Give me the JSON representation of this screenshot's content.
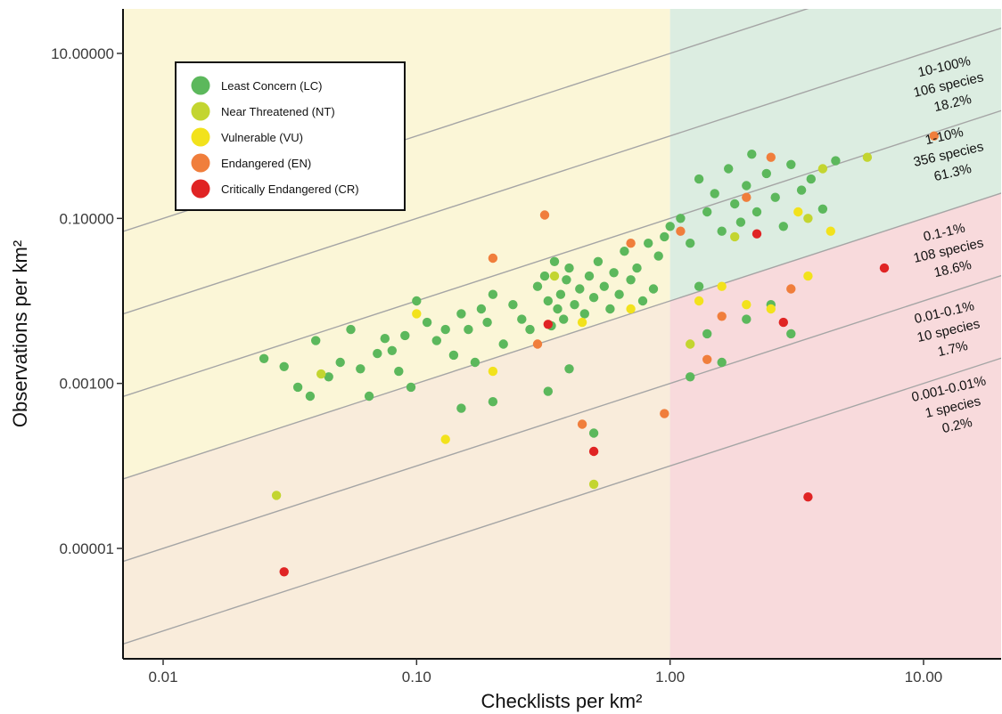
{
  "chart_data": {
    "type": "scatter",
    "xlabel": "Checklists per km²",
    "ylabel": "Observations per km²",
    "x_scale": "log",
    "y_scale": "log",
    "xlim": [
      0.007,
      20
    ],
    "ylim": [
      8e-07,
      20
    ],
    "x_ticks": [
      {
        "value": 0.01,
        "label": "0.01"
      },
      {
        "value": 0.1,
        "label": "0.10"
      },
      {
        "value": 1,
        "label": "1.00"
      },
      {
        "value": 10,
        "label": "10.00"
      }
    ],
    "y_ticks": [
      {
        "value": 10,
        "label": "10.00000"
      },
      {
        "value": 0.1,
        "label": "0.10000"
      },
      {
        "value": 0.001,
        "label": "0.00100"
      },
      {
        "value": 1e-05,
        "label": "0.00001"
      }
    ],
    "grid": false,
    "legend_position": "top-left",
    "regions": [
      {
        "xmin": 0.007,
        "xmax": 1,
        "ymin": "diagonal-1%",
        "ymax": 20,
        "color": "#fbf6d7"
      },
      {
        "xmin": 0.007,
        "xmax": 1,
        "ymin": 8e-07,
        "ymax": "diagonal-1%",
        "color": "#f9ecdb"
      },
      {
        "xmin": 1,
        "xmax": 20,
        "ymin": "diagonal-1%",
        "ymax": 20,
        "color": "#dcede1"
      },
      {
        "xmin": 1,
        "xmax": 20,
        "ymin": 8e-07,
        "ymax": "diagonal-1%",
        "color": "#f8dadc"
      }
    ],
    "reference_lines_observations_per_checklist": [
      10,
      1,
      0.1,
      0.01,
      0.001,
      0.0001
    ],
    "band_labels": [
      {
        "lines": [
          "10-100%",
          "106 species",
          "18.2%"
        ]
      },
      {
        "lines": [
          "1-10%",
          "356 species",
          "61.3%"
        ]
      },
      {
        "lines": [
          "0.1-1%",
          "108 species",
          "18.6%"
        ]
      },
      {
        "lines": [
          "0.01-0.1%",
          "10 species",
          "1.7%"
        ]
      },
      {
        "lines": [
          "0.001-0.01%",
          "1 species",
          "0.2%"
        ]
      }
    ],
    "series": [
      {
        "name": "Least Concern (LC)",
        "color": "#5cb85c",
        "points": [
          [
            0.025,
            0.002
          ],
          [
            0.03,
            0.0016
          ],
          [
            0.034,
            0.0009
          ],
          [
            0.038,
            0.0007
          ],
          [
            0.04,
            0.0033
          ],
          [
            0.045,
            0.0012
          ],
          [
            0.05,
            0.0018
          ],
          [
            0.055,
            0.0045
          ],
          [
            0.06,
            0.0015
          ],
          [
            0.065,
            0.0007
          ],
          [
            0.07,
            0.0023
          ],
          [
            0.075,
            0.0035
          ],
          [
            0.08,
            0.0025
          ],
          [
            0.085,
            0.0014
          ],
          [
            0.09,
            0.0038
          ],
          [
            0.095,
            0.0009
          ],
          [
            0.1,
            0.01
          ],
          [
            0.11,
            0.0055
          ],
          [
            0.12,
            0.0033
          ],
          [
            0.13,
            0.0045
          ],
          [
            0.14,
            0.0022
          ],
          [
            0.15,
            0.007
          ],
          [
            0.16,
            0.0045
          ],
          [
            0.17,
            0.0018
          ],
          [
            0.18,
            0.008
          ],
          [
            0.19,
            0.0055
          ],
          [
            0.2,
            0.012
          ],
          [
            0.22,
            0.003
          ],
          [
            0.24,
            0.009
          ],
          [
            0.26,
            0.006
          ],
          [
            0.28,
            0.0045
          ],
          [
            0.3,
            0.015
          ],
          [
            0.32,
            0.02
          ],
          [
            0.33,
            0.01
          ],
          [
            0.34,
            0.005
          ],
          [
            0.35,
            0.03
          ],
          [
            0.36,
            0.008
          ],
          [
            0.37,
            0.012
          ],
          [
            0.38,
            0.006
          ],
          [
            0.39,
            0.018
          ],
          [
            0.4,
            0.025
          ],
          [
            0.42,
            0.009
          ],
          [
            0.44,
            0.014
          ],
          [
            0.46,
            0.007
          ],
          [
            0.48,
            0.02
          ],
          [
            0.5,
            0.011
          ],
          [
            0.52,
            0.03
          ],
          [
            0.55,
            0.015
          ],
          [
            0.58,
            0.008
          ],
          [
            0.6,
            0.022
          ],
          [
            0.63,
            0.012
          ],
          [
            0.66,
            0.04
          ],
          [
            0.7,
            0.018
          ],
          [
            0.74,
            0.025
          ],
          [
            0.78,
            0.01
          ],
          [
            0.82,
            0.05
          ],
          [
            0.86,
            0.014
          ],
          [
            0.9,
            0.035
          ],
          [
            0.95,
            0.06
          ],
          [
            1.0,
            0.08
          ],
          [
            1.1,
            0.1
          ],
          [
            1.2,
            0.05
          ],
          [
            1.3,
            0.3
          ],
          [
            1.4,
            0.12
          ],
          [
            1.5,
            0.2
          ],
          [
            1.6,
            0.07
          ],
          [
            1.7,
            0.4
          ],
          [
            1.8,
            0.15
          ],
          [
            1.9,
            0.09
          ],
          [
            2.0,
            0.25
          ],
          [
            2.1,
            0.6
          ],
          [
            2.2,
            0.12
          ],
          [
            2.4,
            0.35
          ],
          [
            2.6,
            0.18
          ],
          [
            2.8,
            0.08
          ],
          [
            3.0,
            0.45
          ],
          [
            3.3,
            0.22
          ],
          [
            3.6,
            0.3
          ],
          [
            4.0,
            0.13
          ],
          [
            4.5,
            0.5
          ],
          [
            1.2,
            0.0012
          ],
          [
            1.4,
            0.004
          ],
          [
            1.6,
            0.0018
          ],
          [
            2.0,
            0.006
          ],
          [
            2.5,
            0.009
          ],
          [
            3.0,
            0.004
          ],
          [
            1.3,
            0.015
          ],
          [
            0.33,
            0.0008
          ],
          [
            0.5,
            0.00025
          ],
          [
            0.4,
            0.0015
          ],
          [
            0.2,
            0.0006
          ],
          [
            0.15,
            0.0005
          ]
        ]
      },
      {
        "name": "Near Threatened (NT)",
        "color": "#c3d530",
        "points": [
          [
            0.028,
            4.4e-05
          ],
          [
            0.042,
            0.0013
          ],
          [
            0.5,
            6e-05
          ],
          [
            1.2,
            0.003
          ],
          [
            1.8,
            0.06
          ],
          [
            3.5,
            0.1
          ],
          [
            4.0,
            0.4
          ],
          [
            6.0,
            0.55
          ],
          [
            0.35,
            0.02
          ]
        ]
      },
      {
        "name": "Vulnerable (VU)",
        "color": "#f2e21c",
        "points": [
          [
            0.1,
            0.007
          ],
          [
            0.13,
            0.00021
          ],
          [
            0.2,
            0.0014
          ],
          [
            0.45,
            0.0055
          ],
          [
            0.7,
            0.008
          ],
          [
            1.3,
            0.01
          ],
          [
            1.6,
            0.015
          ],
          [
            2.0,
            0.009
          ],
          [
            2.5,
            0.008
          ],
          [
            3.2,
            0.12
          ],
          [
            3.5,
            0.02
          ],
          [
            4.3,
            0.07
          ]
        ]
      },
      {
        "name": "Endangered (EN)",
        "color": "#f07e3c",
        "points": [
          [
            0.3,
            0.003
          ],
          [
            0.32,
            0.11
          ],
          [
            0.45,
            0.00032
          ],
          [
            0.7,
            0.05
          ],
          [
            0.95,
            0.00043
          ],
          [
            1.1,
            0.07
          ],
          [
            1.4,
            0.00195
          ],
          [
            1.6,
            0.0065
          ],
          [
            2.0,
            0.18
          ],
          [
            2.5,
            0.55
          ],
          [
            3.0,
            0.014
          ],
          [
            11.0,
            1.0
          ],
          [
            0.2,
            0.033
          ]
        ]
      },
      {
        "name": "Critically Endangered (CR)",
        "color": "#e02424",
        "points": [
          [
            0.03,
            5.2e-06
          ],
          [
            0.33,
            0.0052
          ],
          [
            0.5,
            0.00015
          ],
          [
            2.2,
            0.065
          ],
          [
            2.8,
            0.0055
          ],
          [
            3.5,
            4.2e-05
          ],
          [
            7.0,
            0.025
          ]
        ]
      }
    ]
  }
}
